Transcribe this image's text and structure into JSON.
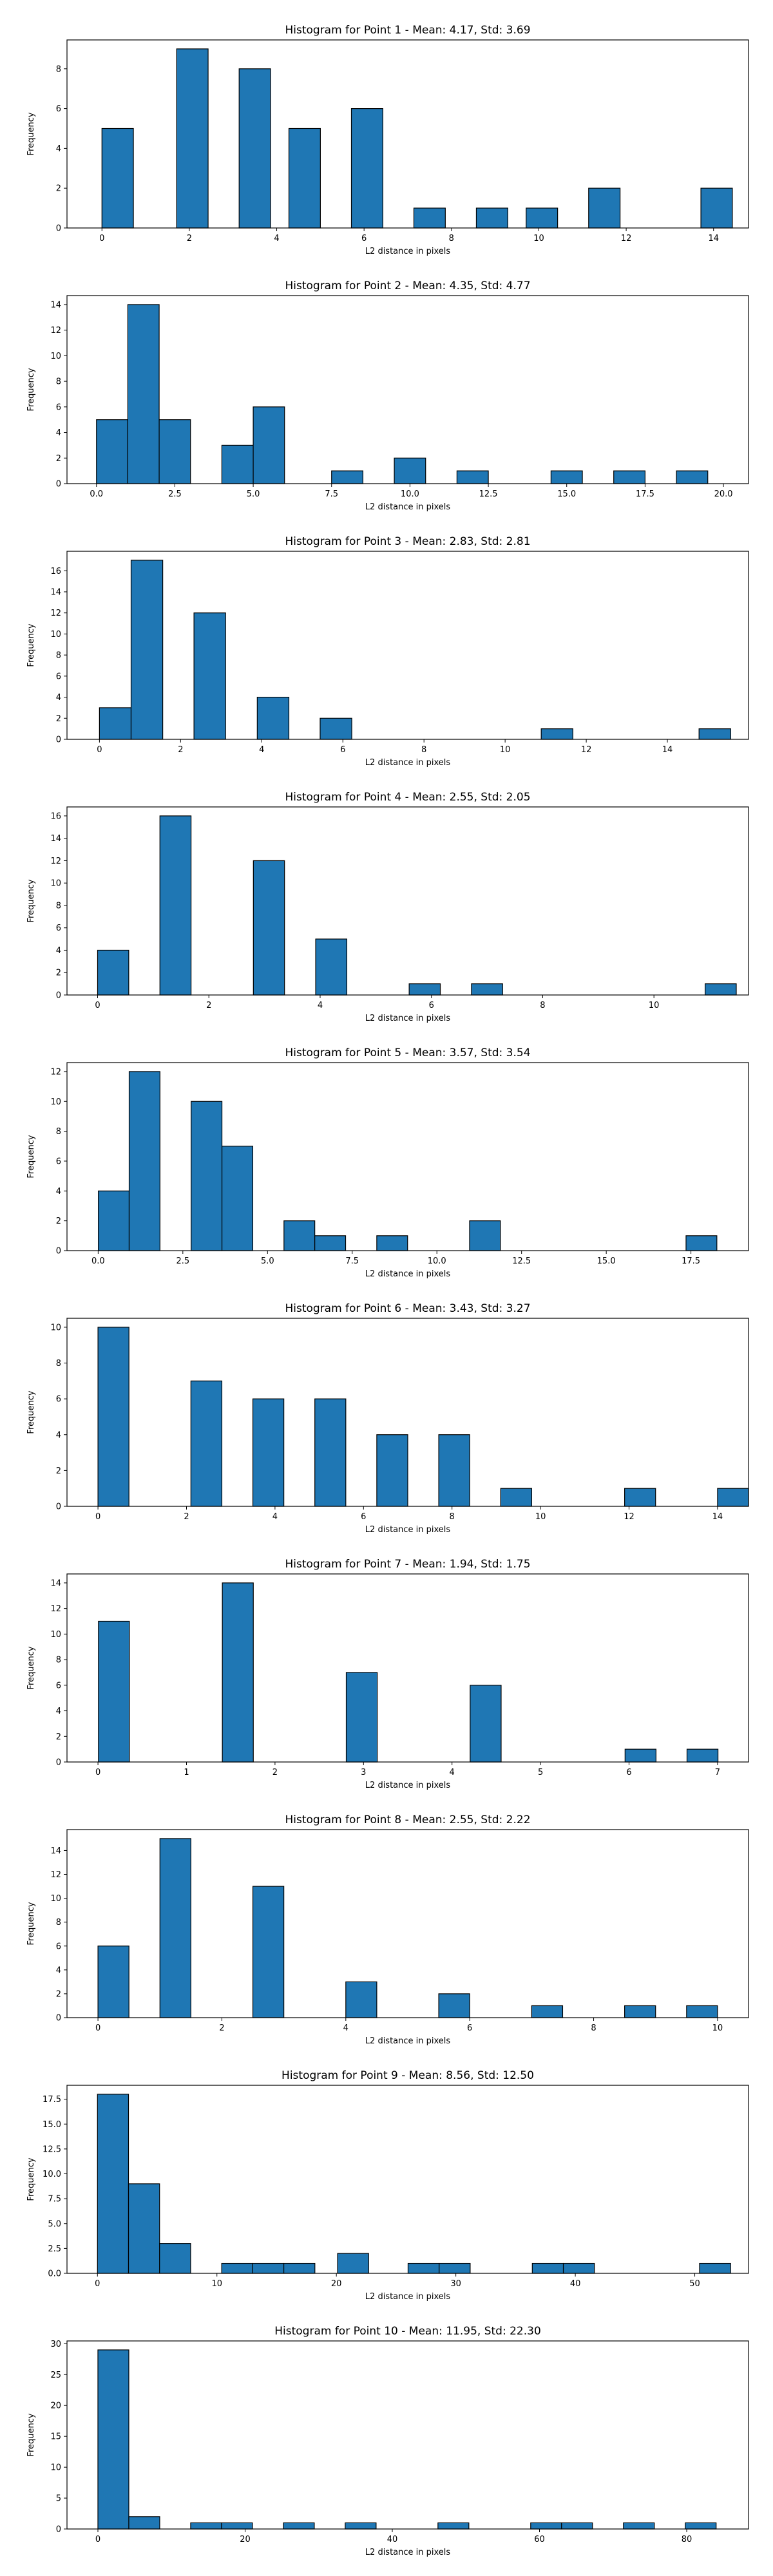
{
  "chart_data": [
    {
      "type": "bar",
      "title": "Histogram for Point 1 - Mean: 4.17, Std: 3.69",
      "xlabel": "L2 distance in pixels",
      "ylabel": "Frequency",
      "xlim": [
        -0.8,
        14.8
      ],
      "ylim": [
        0,
        9.45
      ],
      "bin_width": 0.72,
      "xticks": [
        0,
        2,
        4,
        6,
        8,
        10,
        12,
        14
      ],
      "xticklabels": [
        "0",
        "2",
        "4",
        "6",
        "8",
        "10",
        "12",
        "14"
      ],
      "yticks": [
        0,
        2,
        4,
        6,
        8
      ],
      "yticklabels": [
        "0",
        "2",
        "4",
        "6",
        "8"
      ],
      "x": [
        0.36,
        2.07,
        3.5,
        4.64,
        6.07,
        7.5,
        8.93,
        10.07,
        11.5,
        14.07
      ],
      "values": [
        5,
        9,
        8,
        5,
        6,
        1,
        1,
        1,
        2,
        2
      ]
    },
    {
      "type": "bar",
      "title": "Histogram for Point 2 - Mean: 4.35, Std: 4.77",
      "xlabel": "L2 distance in pixels",
      "ylabel": "Frequency",
      "xlim": [
        -0.94,
        20.8
      ],
      "ylim": [
        0,
        14.7
      ],
      "bin_width": 1.0,
      "xticks": [
        0,
        2.5,
        5,
        7.5,
        10,
        12.5,
        15,
        17.5,
        20
      ],
      "xticklabels": [
        "0.0",
        "2.5",
        "5.0",
        "7.5",
        "10.0",
        "12.5",
        "15.0",
        "17.5",
        "20.0"
      ],
      "yticks": [
        0,
        2,
        4,
        6,
        8,
        10,
        12,
        14
      ],
      "yticklabels": [
        "0",
        "2",
        "4",
        "6",
        "8",
        "10",
        "12",
        "14"
      ],
      "x": [
        0.5,
        1.5,
        2.5,
        4.5,
        5.5,
        8.0,
        10.0,
        12.0,
        15.0,
        17.0,
        19.0
      ],
      "values": [
        5,
        14,
        5,
        3,
        6,
        1,
        2,
        1,
        1,
        1,
        1
      ]
    },
    {
      "type": "bar",
      "title": "Histogram for Point 3 - Mean: 2.83, Std: 2.81",
      "xlabel": "L2 distance in pixels",
      "ylabel": "Frequency",
      "xlim": [
        -0.8,
        16.0
      ],
      "ylim": [
        0,
        17.85
      ],
      "bin_width": 0.78,
      "xticks": [
        0,
        2,
        4,
        6,
        8,
        10,
        12,
        14
      ],
      "xticklabels": [
        "0",
        "2",
        "4",
        "6",
        "8",
        "10",
        "12",
        "14"
      ],
      "yticks": [
        0,
        2,
        4,
        6,
        8,
        10,
        12,
        14,
        16
      ],
      "yticklabels": [
        "0",
        "2",
        "4",
        "6",
        "8",
        "10",
        "12",
        "14",
        "16"
      ],
      "x": [
        0.39,
        1.17,
        2.72,
        4.28,
        5.83,
        11.28,
        15.17
      ],
      "values": [
        3,
        17,
        12,
        4,
        2,
        1,
        1
      ]
    },
    {
      "type": "bar",
      "title": "Histogram for Point 4 - Mean: 2.55, Std: 2.05",
      "xlabel": "L2 distance in pixels",
      "ylabel": "Frequency",
      "xlim": [
        -0.55,
        11.7
      ],
      "ylim": [
        0,
        16.8
      ],
      "bin_width": 0.56,
      "xticks": [
        0,
        2,
        4,
        6,
        8,
        10
      ],
      "xticklabels": [
        "0",
        "2",
        "4",
        "6",
        "8",
        "10"
      ],
      "yticks": [
        0,
        2,
        4,
        6,
        8,
        10,
        12,
        14,
        16
      ],
      "yticklabels": [
        "0",
        "2",
        "4",
        "6",
        "8",
        "10",
        "12",
        "14",
        "16"
      ],
      "x": [
        0.28,
        1.4,
        3.08,
        4.2,
        5.88,
        7.0,
        11.2
      ],
      "values": [
        4,
        16,
        12,
        5,
        1,
        1,
        1
      ]
    },
    {
      "type": "bar",
      "title": "Histogram for Point 5 - Mean: 3.57, Std: 3.54",
      "xlabel": "L2 distance in pixels",
      "ylabel": "Frequency",
      "xlim": [
        -0.92,
        19.2
      ],
      "ylim": [
        0,
        12.6
      ],
      "bin_width": 0.91,
      "xticks": [
        0,
        2.5,
        5,
        7.5,
        10,
        12.5,
        15,
        17.5
      ],
      "xticklabels": [
        "0.0",
        "2.5",
        "5.0",
        "7.5",
        "10.0",
        "12.5",
        "15.0",
        "17.5"
      ],
      "yticks": [
        0,
        2,
        4,
        6,
        8,
        10,
        12
      ],
      "yticklabels": [
        "0",
        "2",
        "4",
        "6",
        "8",
        "10",
        "12"
      ],
      "x": [
        0.46,
        1.37,
        3.2,
        4.11,
        5.94,
        6.85,
        8.68,
        11.42,
        17.81
      ],
      "values": [
        4,
        12,
        10,
        7,
        2,
        1,
        1,
        2,
        1
      ]
    },
    {
      "type": "bar",
      "title": "Histogram for Point 6 - Mean: 3.43, Std: 3.27",
      "xlabel": "L2 distance in pixels",
      "ylabel": "Frequency",
      "xlim": [
        -0.7,
        14.7
      ],
      "ylim": [
        0,
        10.5
      ],
      "bin_width": 0.7,
      "xticks": [
        0,
        2,
        4,
        6,
        8,
        10,
        12,
        14
      ],
      "xticklabels": [
        "0",
        "2",
        "4",
        "6",
        "8",
        "10",
        "12",
        "14"
      ],
      "yticks": [
        0,
        2,
        4,
        6,
        8,
        10
      ],
      "yticklabels": [
        "0",
        "2",
        "4",
        "6",
        "8",
        "10"
      ],
      "x": [
        0.35,
        2.45,
        3.85,
        5.25,
        6.65,
        8.05,
        9.45,
        12.25,
        14.35
      ],
      "values": [
        10,
        7,
        6,
        6,
        4,
        4,
        1,
        1,
        1
      ]
    },
    {
      "type": "bar",
      "title": "Histogram for Point 7 - Mean: 1.94, Std: 1.75",
      "xlabel": "L2 distance in pixels",
      "ylabel": "Frequency",
      "xlim": [
        -0.35,
        7.35
      ],
      "ylim": [
        0,
        14.7
      ],
      "bin_width": 0.35,
      "xticks": [
        0,
        1,
        2,
        3,
        4,
        5,
        6,
        7
      ],
      "xticklabels": [
        "0",
        "1",
        "2",
        "3",
        "4",
        "5",
        "6",
        "7"
      ],
      "yticks": [
        0,
        2,
        4,
        6,
        8,
        10,
        12,
        14
      ],
      "yticklabels": [
        "0",
        "2",
        "4",
        "6",
        "8",
        "10",
        "12",
        "14"
      ],
      "x": [
        0.18,
        1.58,
        2.98,
        4.38,
        6.13,
        6.83
      ],
      "values": [
        11,
        14,
        7,
        6,
        1,
        1
      ]
    },
    {
      "type": "bar",
      "title": "Histogram for Point 8 - Mean: 2.55, Std: 2.22",
      "xlabel": "L2 distance in pixels",
      "ylabel": "Frequency",
      "xlim": [
        -0.5,
        10.5
      ],
      "ylim": [
        0,
        15.75
      ],
      "bin_width": 0.5,
      "xticks": [
        0,
        2,
        4,
        6,
        8,
        10
      ],
      "xticklabels": [
        "0",
        "2",
        "4",
        "6",
        "8",
        "10"
      ],
      "yticks": [
        0,
        2,
        4,
        6,
        8,
        10,
        12,
        14
      ],
      "yticklabels": [
        "0",
        "2",
        "4",
        "6",
        "8",
        "10",
        "12",
        "14"
      ],
      "x": [
        0.25,
        1.25,
        2.75,
        4.25,
        5.75,
        7.25,
        8.75,
        9.75
      ],
      "values": [
        6,
        15,
        11,
        3,
        2,
        1,
        1,
        1
      ]
    },
    {
      "type": "bar",
      "title": "Histogram for Point 9 - Mean: 8.56, Std: 12.50",
      "xlabel": "L2 distance in pixels",
      "ylabel": "Frequency",
      "xlim": [
        -2.55,
        54.5
      ],
      "ylim": [
        0,
        18.9
      ],
      "bin_width": 2.6,
      "xticks": [
        0,
        10,
        20,
        30,
        40,
        50
      ],
      "xticklabels": [
        "0",
        "10",
        "20",
        "30",
        "40",
        "50"
      ],
      "yticks": [
        0,
        2.5,
        5,
        7.5,
        10,
        12.5,
        15,
        17.5
      ],
      "yticklabels": [
        "0.0",
        "2.5",
        "5.0",
        "7.5",
        "10.0",
        "12.5",
        "15.0",
        "17.5"
      ],
      "x": [
        1.3,
        3.9,
        6.5,
        11.7,
        14.3,
        16.9,
        21.4,
        27.3,
        29.9,
        37.7,
        40.3,
        51.7
      ],
      "values": [
        18,
        9,
        3,
        1,
        1,
        1,
        2,
        1,
        1,
        1,
        1,
        1
      ]
    },
    {
      "type": "bar",
      "title": "Histogram for Point 10 - Mean: 11.95, Std: 22.30",
      "xlabel": "L2 distance in pixels",
      "ylabel": "Frequency",
      "xlim": [
        -4.2,
        88.4
      ],
      "ylim": [
        0,
        30.45
      ],
      "bin_width": 4.2,
      "xticks": [
        0,
        20,
        40,
        60,
        80
      ],
      "xticklabels": [
        "0",
        "20",
        "40",
        "60",
        "80"
      ],
      "yticks": [
        0,
        5,
        10,
        15,
        20,
        25,
        30
      ],
      "yticklabels": [
        "0",
        "5",
        "10",
        "15",
        "20",
        "25",
        "30"
      ],
      "x": [
        2.1,
        6.3,
        14.7,
        18.9,
        27.3,
        35.7,
        48.3,
        60.9,
        65.1,
        73.5,
        81.9
      ],
      "values": [
        29,
        2,
        1,
        1,
        1,
        1,
        1,
        1,
        1,
        1,
        1
      ]
    }
  ],
  "colors": {
    "bar_fill": "#1f77b4",
    "bar_edge": "#000000",
    "axes": "#000000",
    "background": "#ffffff"
  }
}
